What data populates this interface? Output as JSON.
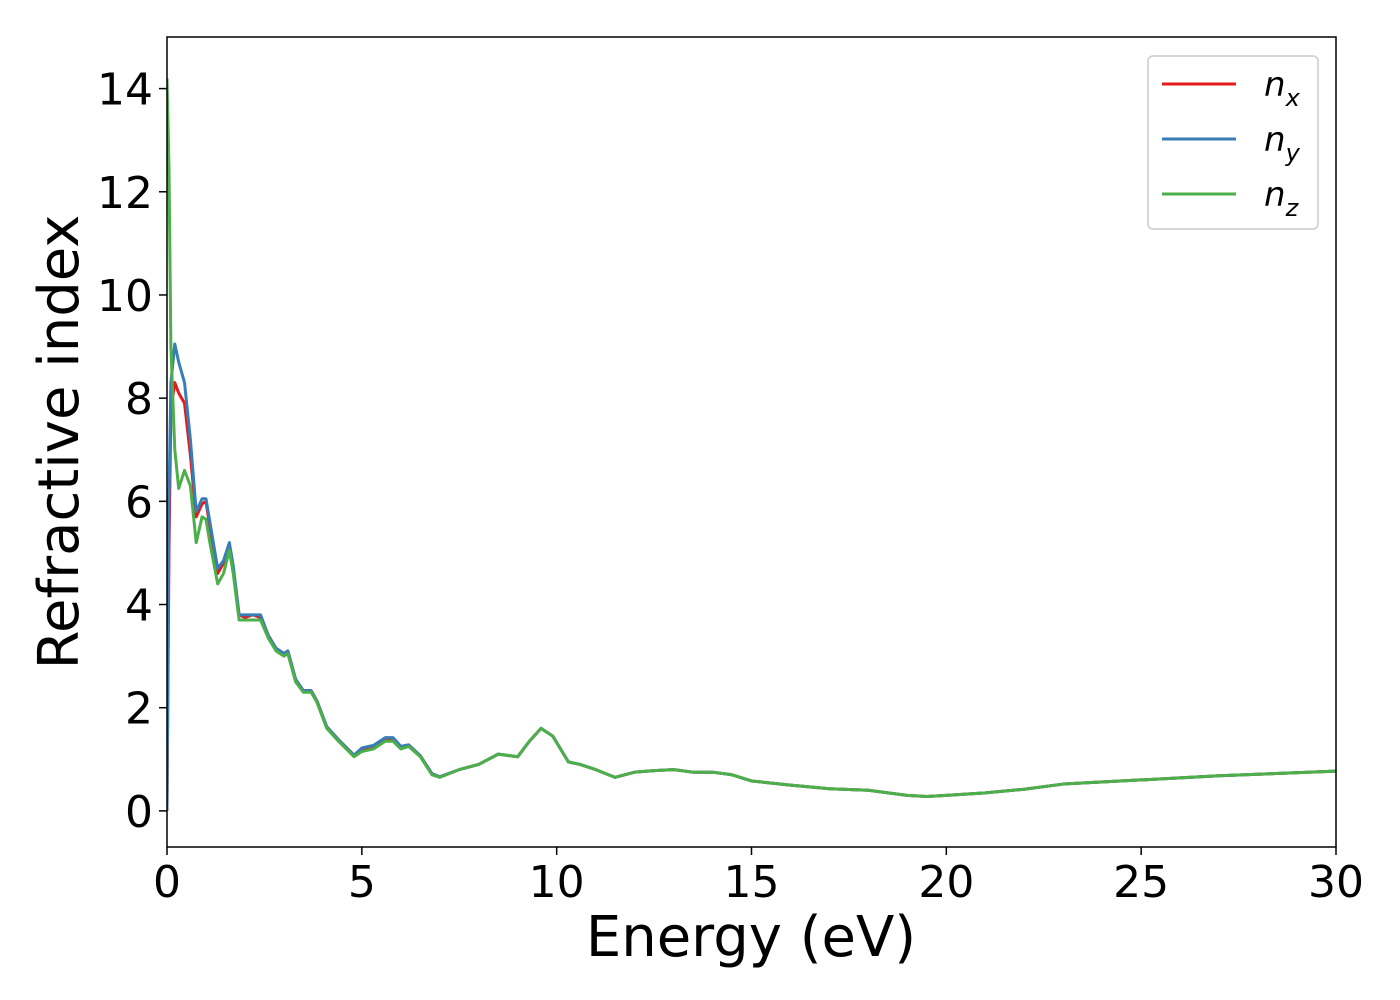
{
  "chart_data": {
    "type": "line",
    "xlabel": "Energy (eV)",
    "ylabel": "Refractive index",
    "x": [
      0,
      0.05,
      0.1,
      0.2,
      0.3,
      0.45,
      0.6,
      0.75,
      0.9,
      1.0,
      1.1,
      1.3,
      1.45,
      1.6,
      1.7,
      1.85,
      2.0,
      2.2,
      2.4,
      2.6,
      2.8,
      3.0,
      3.1,
      3.3,
      3.5,
      3.7,
      3.85,
      4.1,
      4.4,
      4.8,
      5.0,
      5.3,
      5.6,
      5.8,
      6.0,
      6.2,
      6.5,
      6.8,
      7.0,
      7.5,
      8.0,
      8.5,
      9.0,
      9.3,
      9.6,
      9.9,
      10.3,
      10.6,
      11.0,
      11.5,
      12.0,
      12.5,
      13.0,
      13.5,
      14.0,
      14.5,
      15.0,
      16.0,
      17.0,
      18.0,
      19.0,
      19.5,
      20.0,
      21.0,
      22.0,
      23.0,
      25.0,
      27.0,
      30.0
    ],
    "series": [
      {
        "name": "nx",
        "color": "#e41a1c",
        "values": [
          0,
          5.0,
          7.8,
          8.3,
          8.1,
          7.9,
          6.9,
          5.7,
          5.95,
          6.0,
          5.5,
          4.6,
          4.8,
          5.15,
          4.7,
          3.8,
          3.75,
          3.8,
          3.75,
          3.4,
          3.15,
          3.05,
          3.1,
          2.55,
          2.33,
          2.33,
          2.13,
          1.63,
          1.38,
          1.08,
          1.2,
          1.25,
          1.4,
          1.4,
          1.23,
          1.28,
          1.07,
          0.72,
          0.66,
          0.8,
          0.9,
          1.1,
          1.05,
          1.35,
          1.6,
          1.45,
          0.95,
          0.9,
          0.8,
          0.65,
          0.75,
          0.78,
          0.8,
          0.75,
          0.75,
          0.7,
          0.58,
          0.5,
          0.43,
          0.4,
          0.3,
          0.28,
          0.3,
          0.35,
          0.42,
          0.52,
          0.6,
          0.68,
          0.77
        ]
      },
      {
        "name": "ny",
        "color": "#377eb8",
        "values": [
          0,
          6.0,
          8.3,
          9.05,
          8.7,
          8.3,
          7.2,
          5.8,
          6.05,
          6.05,
          5.6,
          4.7,
          4.85,
          5.2,
          4.75,
          3.8,
          3.8,
          3.8,
          3.8,
          3.4,
          3.15,
          3.05,
          3.1,
          2.55,
          2.33,
          2.33,
          2.13,
          1.63,
          1.38,
          1.08,
          1.22,
          1.27,
          1.42,
          1.42,
          1.25,
          1.28,
          1.07,
          0.72,
          0.66,
          0.8,
          0.9,
          1.1,
          1.05,
          1.35,
          1.6,
          1.45,
          0.95,
          0.9,
          0.8,
          0.65,
          0.75,
          0.78,
          0.8,
          0.75,
          0.75,
          0.7,
          0.58,
          0.5,
          0.43,
          0.4,
          0.3,
          0.28,
          0.3,
          0.35,
          0.42,
          0.52,
          0.6,
          0.68,
          0.77
        ]
      },
      {
        "name": "nz",
        "color": "#4daf4a",
        "values": [
          14.2,
          12.5,
          9.0,
          7.0,
          6.25,
          6.6,
          6.3,
          5.2,
          5.7,
          5.65,
          5.2,
          4.4,
          4.6,
          5.05,
          4.6,
          3.7,
          3.7,
          3.7,
          3.7,
          3.35,
          3.1,
          3.0,
          3.05,
          2.5,
          2.3,
          2.3,
          2.1,
          1.6,
          1.35,
          1.05,
          1.15,
          1.2,
          1.35,
          1.35,
          1.2,
          1.25,
          1.05,
          0.7,
          0.65,
          0.8,
          0.9,
          1.1,
          1.05,
          1.35,
          1.6,
          1.45,
          0.95,
          0.9,
          0.8,
          0.65,
          0.75,
          0.78,
          0.8,
          0.75,
          0.75,
          0.7,
          0.58,
          0.5,
          0.43,
          0.4,
          0.3,
          0.28,
          0.3,
          0.35,
          0.42,
          0.52,
          0.6,
          0.68,
          0.77
        ]
      }
    ],
    "xlim": [
      0,
      30
    ],
    "xticks": [
      0,
      5,
      10,
      15,
      20,
      25,
      30
    ],
    "ylim": [
      -0.7,
      15.0
    ],
    "yticks": [
      0,
      2,
      4,
      6,
      8,
      10,
      12,
      14
    ],
    "grid": false,
    "legend": "upper right"
  }
}
